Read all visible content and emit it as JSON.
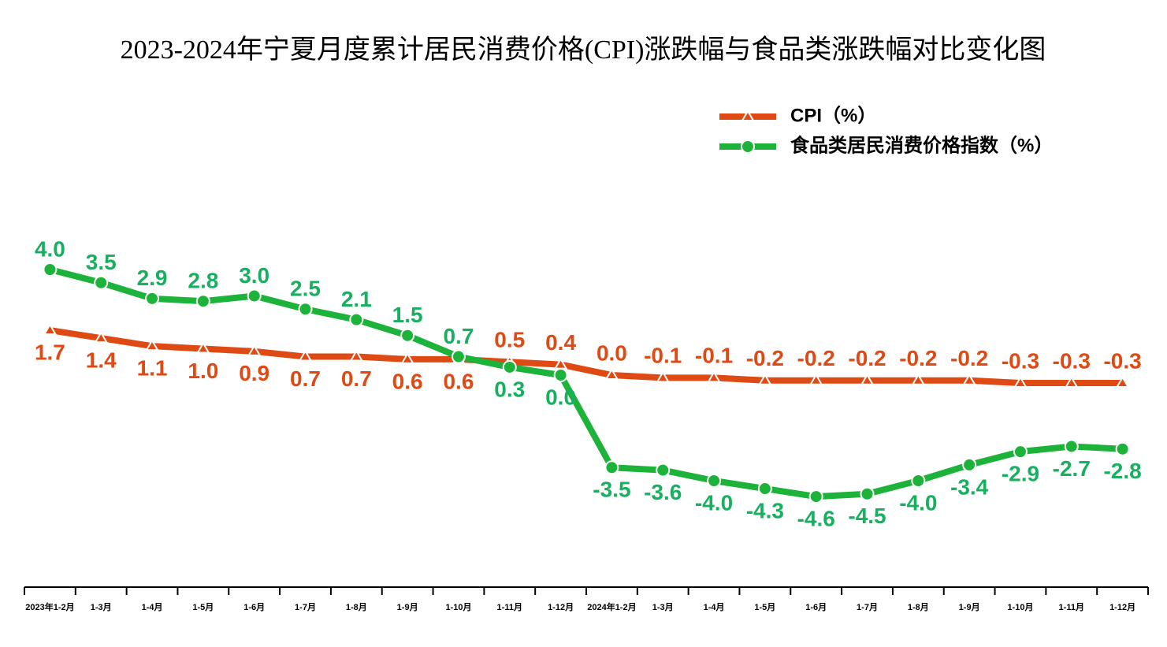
{
  "chart_data": {
    "type": "line",
    "title": "2023-2024年宁夏月度累计居民消费价格(CPI)涨跌幅与食品类涨跌幅对比变化图",
    "categories": [
      "2023年1-2月",
      "1-3月",
      "1-4月",
      "1-5月",
      "1-6月",
      "1-7月",
      "1-8月",
      "1-9月",
      "1-10月",
      "1-11月",
      "1-12月",
      "2024年1-2月",
      "1-3月",
      "1-4月",
      "1-5月",
      "1-6月",
      "1-7月",
      "1-8月",
      "1-9月",
      "1-10月",
      "1-11月",
      "1-12月"
    ],
    "series": [
      {
        "name": "CPI（%）",
        "color": "#df4a14",
        "values": [
          1.7,
          1.4,
          1.1,
          1.0,
          0.9,
          0.7,
          0.7,
          0.6,
          0.6,
          0.5,
          0.4,
          0.0,
          -0.1,
          -0.1,
          -0.2,
          -0.2,
          -0.2,
          -0.2,
          -0.2,
          -0.3,
          -0.3,
          -0.3
        ],
        "value_labels": [
          "1.7",
          "1.4",
          "1.1",
          "1.0",
          "0.9",
          "0.7",
          "0.7",
          "0.6",
          "0.6",
          "0.5",
          "0.4",
          "0.0",
          "-0.1",
          "-0.1",
          "-0.2",
          "-0.2",
          "-0.2",
          "-0.2",
          "-0.2",
          "-0.3",
          "-0.3",
          "-0.3"
        ]
      },
      {
        "name": "食品类居民消费价格指数（%）",
        "color": "#1db33a",
        "values": [
          4.0,
          3.5,
          2.9,
          2.8,
          3.0,
          2.5,
          2.1,
          1.5,
          0.7,
          0.3,
          0.0,
          -3.5,
          -3.6,
          -4.0,
          -4.3,
          -4.6,
          -4.5,
          -4.0,
          -3.4,
          -2.9,
          -2.7,
          -2.8
        ],
        "value_labels": [
          "4.0",
          "3.5",
          "2.9",
          "2.8",
          "3.0",
          "2.5",
          "2.1",
          "1.5",
          "0.7",
          "0.3",
          "0.0",
          "-3.5",
          "-3.6",
          "-4.0",
          "-4.3",
          "-4.6",
          "-4.5",
          "-4.0",
          "-3.4",
          "-2.9",
          "-2.7",
          "-2.8"
        ]
      }
    ]
  }
}
